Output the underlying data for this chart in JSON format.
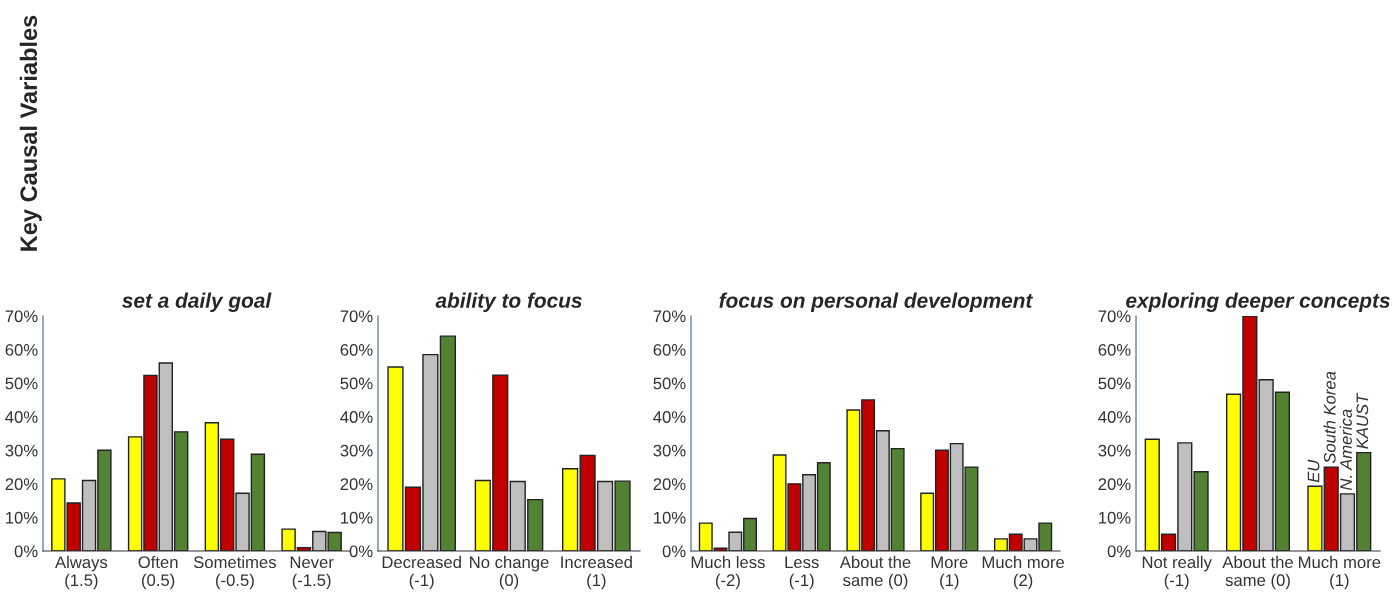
{
  "chart_data": [
    {
      "type": "bar",
      "title": "set a daily goal",
      "annotations": [
        "Key Causal Variables"
      ],
      "categories": [
        "Always\n(1.5)",
        "Often\n(0.5)",
        "Sometimes\n(-0.5)",
        "Never\n(-1.5)"
      ],
      "series": [
        {
          "color": "#ffff00",
          "values": [
            21.5,
            34,
            38.2,
            6.5
          ]
        },
        {
          "color": "#c00000",
          "values": [
            14.3,
            52.3,
            33.3,
            1
          ]
        },
        {
          "color": "#bfbfbf",
          "values": [
            21,
            56,
            17.2,
            5.8
          ]
        },
        {
          "color": "#548235",
          "values": [
            30,
            35.5,
            28.8,
            5.5
          ]
        }
      ],
      "ylim": [
        0,
        70
      ],
      "yticks": [
        {
          "value": 0,
          "label": "0%"
        },
        {
          "value": 10,
          "label": "10%"
        },
        {
          "value": 20,
          "label": "20%"
        },
        {
          "value": 30,
          "label": "30%"
        },
        {
          "value": 40,
          "label": "40%"
        },
        {
          "value": 50,
          "label": "50%"
        },
        {
          "value": 60,
          "label": "60%"
        },
        {
          "value": 70,
          "label": "70%"
        }
      ]
    },
    {
      "type": "bar",
      "title": "ability to focus",
      "categories": [
        "Decreased\n(-1)",
        "No change\n(0)",
        "Increased\n(1)"
      ],
      "series": [
        {
          "color": "#ffff00",
          "values": [
            54.8,
            21,
            24.5
          ]
        },
        {
          "color": "#c00000",
          "values": [
            19,
            52.4,
            28.5
          ]
        },
        {
          "color": "#bfbfbf",
          "values": [
            58.5,
            20.7,
            20.7
          ]
        },
        {
          "color": "#548235",
          "values": [
            64,
            15.3,
            20.8
          ]
        }
      ],
      "ylim": [
        0,
        70
      ],
      "yticks": [
        {
          "value": 0,
          "label": "0%"
        },
        {
          "value": 10,
          "label": "10%"
        },
        {
          "value": 20,
          "label": "20%"
        },
        {
          "value": 30,
          "label": "30%"
        },
        {
          "value": 40,
          "label": "40%"
        },
        {
          "value": 50,
          "label": "50%"
        },
        {
          "value": 60,
          "label": "60%"
        },
        {
          "value": 70,
          "label": "70%"
        }
      ]
    },
    {
      "type": "bar",
      "title": "focus on personal development",
      "categories": [
        "Much less\n(-2)",
        "Less\n(-1)",
        "About the\nsame (0)",
        "More\n(1)",
        "Much more\n(2)"
      ],
      "series": [
        {
          "color": "#ffff00",
          "values": [
            8.3,
            28.6,
            42,
            17.2,
            3.6
          ]
        },
        {
          "color": "#c00000",
          "values": [
            0.8,
            20,
            45,
            30,
            5
          ]
        },
        {
          "color": "#bfbfbf",
          "values": [
            5.6,
            22.7,
            35.8,
            32,
            3.6
          ]
        },
        {
          "color": "#548235",
          "values": [
            9.7,
            26.3,
            30.5,
            25,
            8.3
          ]
        }
      ],
      "ylim": [
        0,
        70
      ],
      "yticks": [
        {
          "value": 0,
          "label": "0%"
        },
        {
          "value": 10,
          "label": "10%"
        },
        {
          "value": 20,
          "label": "20%"
        },
        {
          "value": 30,
          "label": "30%"
        },
        {
          "value": 40,
          "label": "40%"
        },
        {
          "value": 50,
          "label": "50%"
        },
        {
          "value": 60,
          "label": "60%"
        },
        {
          "value": 70,
          "label": "70%"
        }
      ]
    },
    {
      "type": "bar",
      "title": "exploring deeper concepts",
      "categories": [
        "Not really\n(-1)",
        "About the\nsame (0)",
        "Much more\n(1)"
      ],
      "series": [
        {
          "name": "EU",
          "color": "#ffff00",
          "values": [
            33.3,
            46.7,
            19.3
          ]
        },
        {
          "name": "South Korea",
          "color": "#c00000",
          "values": [
            5,
            70,
            25
          ]
        },
        {
          "name": "N. America",
          "color": "#bfbfbf",
          "values": [
            32.2,
            51,
            17
          ]
        },
        {
          "name": "KAUST",
          "color": "#548235",
          "values": [
            23.6,
            47.3,
            29.3
          ]
        }
      ],
      "ylim": [
        0,
        70
      ],
      "yticks": [
        {
          "value": 0,
          "label": "0%"
        },
        {
          "value": 10,
          "label": "10%"
        },
        {
          "value": 20,
          "label": "20%"
        },
        {
          "value": 30,
          "label": "30%"
        },
        {
          "value": 40,
          "label": "40%"
        },
        {
          "value": 50,
          "label": "50%"
        },
        {
          "value": 60,
          "label": "60%"
        },
        {
          "value": 70,
          "label": "70%"
        }
      ]
    }
  ]
}
